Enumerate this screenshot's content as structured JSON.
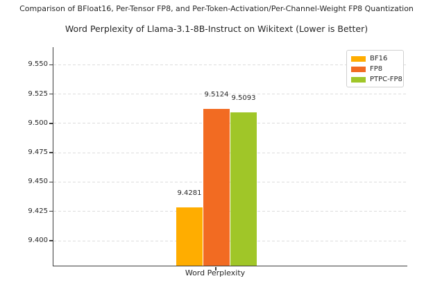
{
  "header": {
    "suptitle": "Comparison of BFloat16, Per-Tensor FP8, and Per-Token-Activation/Per-Channel-Weight FP8 Quantization"
  },
  "chart_data": {
    "type": "bar",
    "title": "Word Perplexity of Llama-3.1-8B-Instruct on Wikitext (Lower is Better)",
    "categories": [
      "Word Perplexity"
    ],
    "series": [
      {
        "name": "BF16",
        "color": "#FFAD00",
        "values": [
          9.4281
        ],
        "bar_labels": [
          "9.4281"
        ]
      },
      {
        "name": "FP8",
        "color": "#F26B22",
        "values": [
          9.5124
        ],
        "bar_labels": [
          "9.5124"
        ]
      },
      {
        "name": "PTPC-FP8",
        "color": "#A0C628",
        "values": [
          9.5093
        ],
        "bar_labels": [
          "9.5093"
        ]
      }
    ],
    "xlabel": "",
    "ylabel": "",
    "ylim": [
      9.3787,
      9.565
    ],
    "yticks": [
      9.4,
      9.425,
      9.45,
      9.475,
      9.5,
      9.525,
      9.55
    ],
    "ytick_labels": [
      "9.400",
      "9.425",
      "9.450",
      "9.475",
      "9.500",
      "9.525",
      "9.550"
    ],
    "grid": true,
    "legend_position": "upper right",
    "text_color": "#262626",
    "spine_color": "#3a3a3a",
    "gridline_color": "#dcdcdc"
  }
}
